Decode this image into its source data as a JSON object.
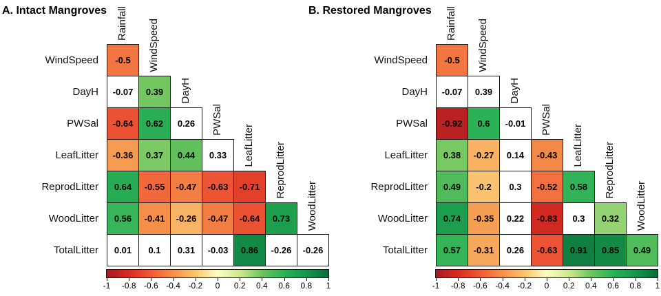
{
  "chart_data": [
    {
      "type": "heatmap",
      "subtype": "lower-triangular-correlation-matrix",
      "title": "A. Intact Mangroves",
      "col_labels": [
        "Rainfall",
        "WindSpeed",
        "DayH",
        "PWSal",
        "LeafLitter",
        "ReprodLitter",
        "WoodLitter"
      ],
      "row_labels": [
        "WindSpeed",
        "DayH",
        "PWSal",
        "LeafLitter",
        "ReprodLitter",
        "WoodLitter",
        "TotalLitter"
      ],
      "values": [
        [
          -0.5
        ],
        [
          -0.07,
          0.39
        ],
        [
          -0.64,
          0.62,
          0.26
        ],
        [
          -0.36,
          0.37,
          0.44,
          0.33
        ],
        [
          0.64,
          -0.55,
          -0.47,
          -0.63,
          -0.71
        ],
        [
          0.56,
          -0.41,
          -0.26,
          -0.47,
          -0.64,
          0.73
        ],
        [
          0.01,
          0.1,
          0.31,
          -0.03,
          0.86,
          -0.26,
          -0.26
        ]
      ],
      "colored": [
        [
          1
        ],
        [
          0,
          1
        ],
        [
          1,
          1,
          0
        ],
        [
          1,
          1,
          1,
          0
        ],
        [
          1,
          1,
          1,
          1,
          1
        ],
        [
          1,
          1,
          1,
          1,
          1,
          1
        ],
        [
          0,
          0,
          0,
          0,
          1,
          0,
          0
        ]
      ]
    },
    {
      "type": "heatmap",
      "subtype": "lower-triangular-correlation-matrix",
      "title": "B. Restored Mangroves",
      "col_labels": [
        "Rainfall",
        "WindSpeed",
        "DayH",
        "PWSal",
        "LeafLitter",
        "ReprodLitter",
        "WoodLitter"
      ],
      "row_labels": [
        "WindSpeed",
        "DayH",
        "PWSal",
        "LeafLitter",
        "ReprodLitter",
        "WoodLitter",
        "TotalLitter"
      ],
      "values": [
        [
          -0.5
        ],
        [
          -0.07,
          0.39
        ],
        [
          -0.92,
          0.6,
          -0.01
        ],
        [
          0.38,
          -0.27,
          0.14,
          -0.43
        ],
        [
          0.49,
          -0.2,
          0.3,
          -0.52,
          0.58
        ],
        [
          0.74,
          -0.35,
          0.22,
          -0.83,
          0.3,
          0.32
        ],
        [
          0.57,
          -0.31,
          0.26,
          -0.63,
          0.91,
          0.85,
          0.49
        ]
      ],
      "colored": [
        [
          1
        ],
        [
          0,
          0
        ],
        [
          1,
          1,
          0
        ],
        [
          1,
          1,
          0,
          1
        ],
        [
          1,
          1,
          0,
          1,
          1
        ],
        [
          1,
          1,
          0,
          1,
          0,
          1
        ],
        [
          1,
          1,
          0,
          1,
          1,
          1,
          1
        ]
      ]
    }
  ],
  "colorbar": {
    "range": [
      -1,
      1
    ],
    "tick_labels": [
      "-1",
      "-0.8",
      "-0.6",
      "-0.4",
      "-0.2",
      "0",
      "0.2",
      "0.4",
      "0.6",
      "0.8",
      "1"
    ],
    "gradient_stops": [
      {
        "value": -1.0,
        "color": "#a31a25"
      },
      {
        "value": -0.8,
        "color": "#d92b21"
      },
      {
        "value": -0.6,
        "color": "#f05a38"
      },
      {
        "value": -0.4,
        "color": "#f4914a"
      },
      {
        "value": -0.2,
        "color": "#fac36f"
      },
      {
        "value": 0.0,
        "color": "#fffdc2"
      },
      {
        "value": 0.2,
        "color": "#cfe890"
      },
      {
        "value": 0.4,
        "color": "#6ec45f"
      },
      {
        "value": 0.6,
        "color": "#2bb156"
      },
      {
        "value": 0.8,
        "color": "#15964a"
      },
      {
        "value": 1.0,
        "color": "#0b6b37"
      }
    ],
    "uncolored_cell_color": "#ffffff",
    "grid_color": "#1a1a1a"
  }
}
